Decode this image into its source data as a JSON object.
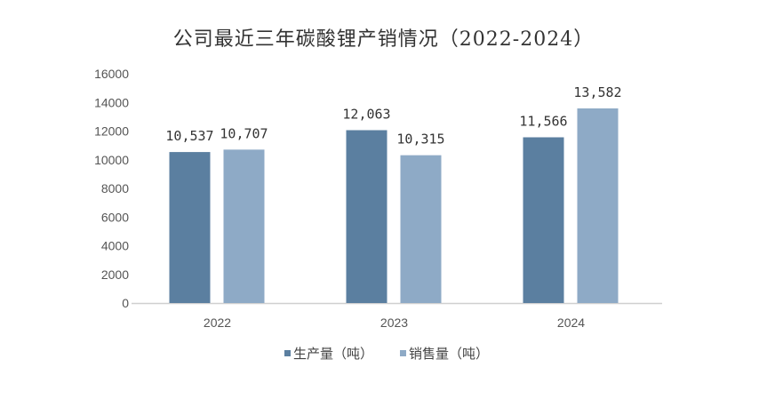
{
  "chart_data": {
    "type": "bar",
    "title": "公司最近三年碳酸锂产销情况（2022-2024）",
    "xlabel": "",
    "ylabel": "",
    "categories": [
      "2022",
      "2023",
      "2024"
    ],
    "series": [
      {
        "name": "生产量（吨）",
        "color": "#5b7fa0",
        "values": [
          10537,
          12063,
          11566
        ],
        "labels": [
          "10,537",
          "12,063",
          "11,566"
        ]
      },
      {
        "name": "销售量（吨）",
        "color": "#8eaac6",
        "values": [
          10707,
          10315,
          13582
        ],
        "labels": [
          "10,707",
          "10,315",
          "13,582"
        ]
      }
    ],
    "ylim": [
      0,
      16000
    ],
    "yticks": [
      "0",
      "2000",
      "4000",
      "6000",
      "8000",
      "10000",
      "12000",
      "14000",
      "16000"
    ],
    "grid": false,
    "legend": "bottom"
  }
}
